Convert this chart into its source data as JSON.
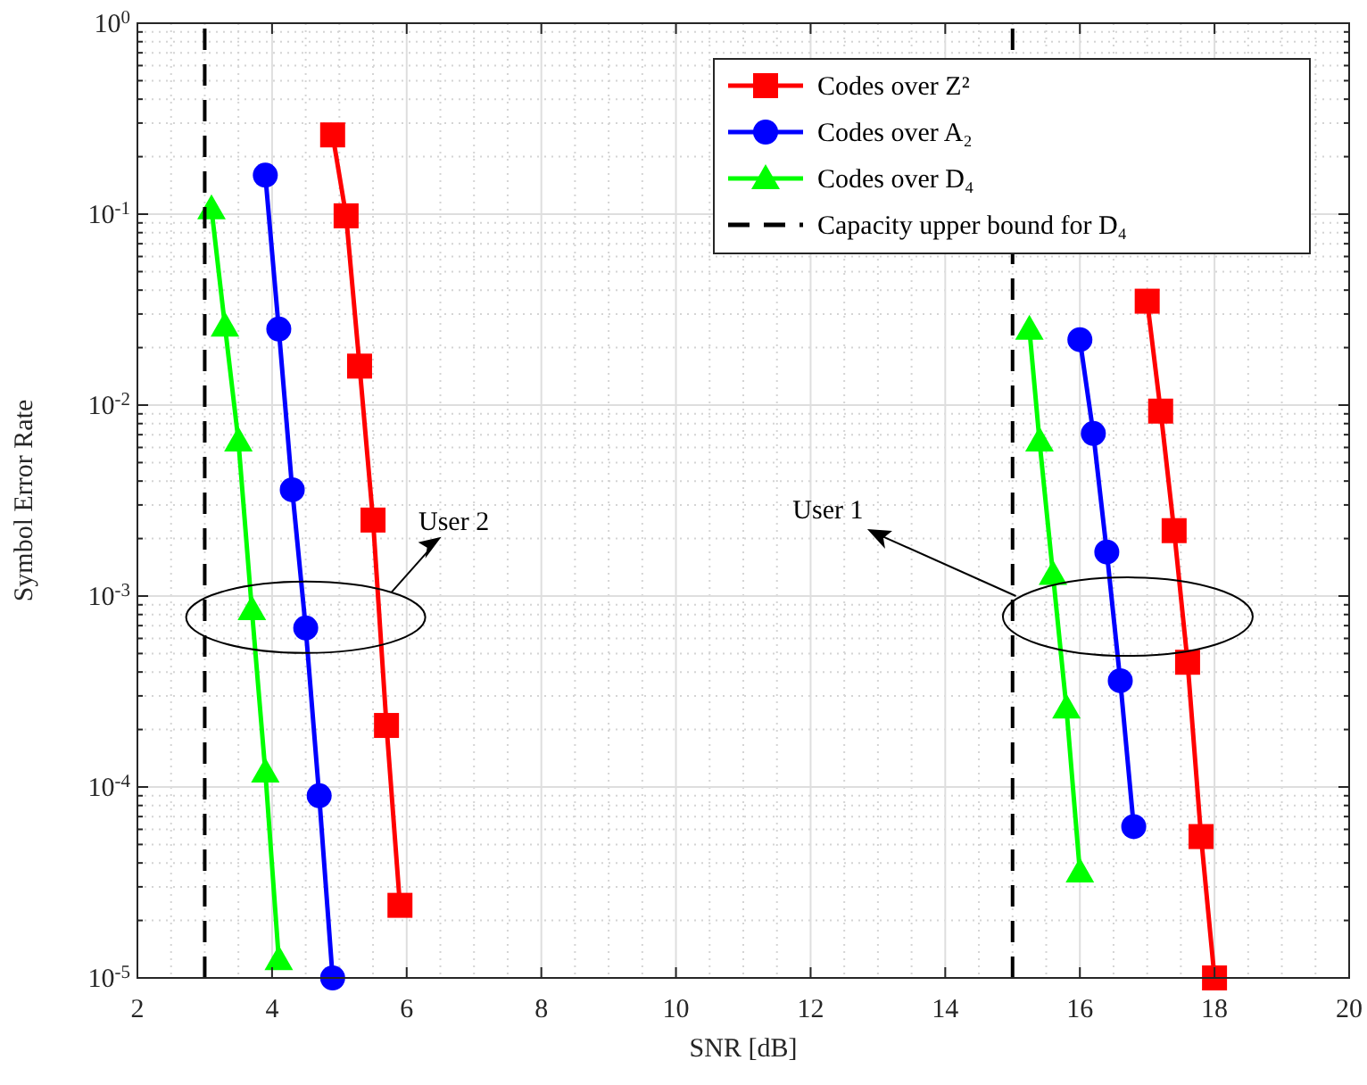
{
  "chart_data": {
    "type": "line",
    "xlabel": "SNR [dB]",
    "ylabel": "Symbol Error Rate",
    "log": "y",
    "grid": true,
    "legend": "top right",
    "xlim": [
      2,
      20
    ],
    "xticks": [
      2,
      4,
      6,
      8,
      10,
      12,
      14,
      16,
      18,
      20
    ],
    "ylim": [
      1e-05,
      1
    ],
    "yticks": [
      {
        "value": 1e-05,
        "label": "10$^{-5}$"
      },
      {
        "value": 0.0001,
        "label": "10$^{-4}$"
      },
      {
        "value": 0.001,
        "label": "10$^{-3}$"
      },
      {
        "value": 0.01,
        "label": "10$^{-2}$"
      },
      {
        "value": 0.1,
        "label": "10$^{-1}$"
      },
      {
        "value": 1,
        "label": "10$^{0}$"
      }
    ],
    "series": [
      {
        "name": "Codes over Z²",
        "color": "#ff0000",
        "marker": "square",
        "x": [
          4.9,
          5.1,
          5.3,
          5.5,
          5.7,
          5.9,
          10,
          17,
          17.2,
          17.4,
          17.6,
          17.8,
          18
        ],
        "values": [
          0.26,
          0.098,
          0.016,
          0.0025,
          0.00021,
          2.4e-05,
          null,
          0.035,
          0.0093,
          0.0022,
          0.00045,
          5.5e-05,
          1e-05
        ]
      },
      {
        "name": "Codes over A₂",
        "color": "#0000ff",
        "marker": "circle",
        "x": [
          3.9,
          4.1,
          4.3,
          4.5,
          4.7,
          4.9,
          10,
          16,
          16.2,
          16.4,
          16.6,
          16.8
        ],
        "values": [
          0.16,
          0.025,
          0.0036,
          0.00068,
          9e-05,
          1e-05,
          null,
          0.022,
          0.0071,
          0.0017,
          0.00036,
          6.2e-05
        ]
      },
      {
        "name": "Codes over D₄",
        "color": "#00ff00",
        "marker": "triangle",
        "x": [
          3.1,
          3.3,
          3.5,
          3.7,
          3.9,
          4.1,
          10,
          15.25,
          15.4,
          15.6,
          15.8,
          16
        ],
        "values": [
          0.107,
          0.026,
          0.0065,
          0.00085,
          0.00012,
          1.25e-05,
          null,
          0.025,
          0.0065,
          0.0013,
          0.00026,
          3.6e-05
        ]
      },
      {
        "name": "Capacity upper bound for D₄",
        "color": "#000000",
        "marker": "none",
        "line_style": "dashed",
        "x": [
          3,
          3,
          9,
          15,
          15
        ],
        "values": [
          1e-05,
          1,
          null,
          1e-05,
          1
        ]
      }
    ],
    "annotations": [
      "User 2",
      {
        "text": "User 1",
        "x": 15.05,
        "y": 0.001
      }
    ]
  }
}
